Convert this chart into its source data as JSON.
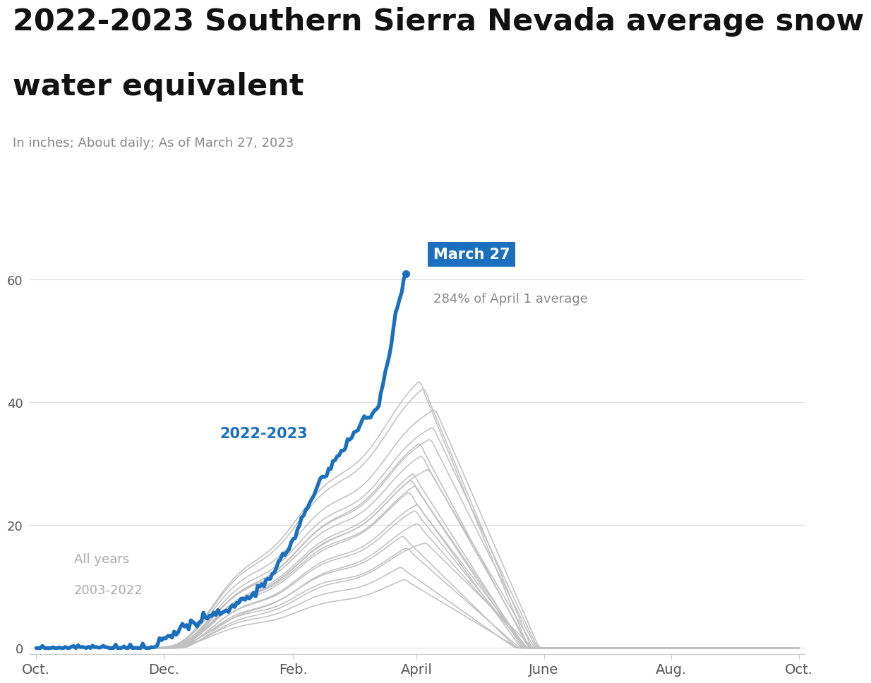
{
  "title_line1": "2022-2023 Southern Sierra Nevada average snow",
  "title_line2": "water equivalent",
  "subtitle": "In inches; About daily; As of March 27, 2023",
  "annotation_label": "March 27",
  "annotation_sub": "284% of April 1 average",
  "label_2022": "2022-2023",
  "label_hist_line1": "All years",
  "label_hist_line2": "2003-2022",
  "blue_color": "#1a6fbe",
  "gray_color": "#c0c0c0",
  "annotation_bg": "#1a6fbe",
  "annotation_text_color": "#ffffff",
  "annotation_sub_color": "#888888",
  "title_fontsize": 31,
  "subtitle_fontsize": 13,
  "yticks": [
    0,
    20,
    40,
    60
  ],
  "ylim": [
    -1,
    67
  ],
  "xtick_labels": [
    "Oct.",
    "Dec.",
    "Feb.",
    "April",
    "June",
    "Aug.",
    "Oct."
  ],
  "xtick_positions": [
    0,
    61,
    123,
    182,
    243,
    304,
    365
  ],
  "background_color": "#ffffff"
}
